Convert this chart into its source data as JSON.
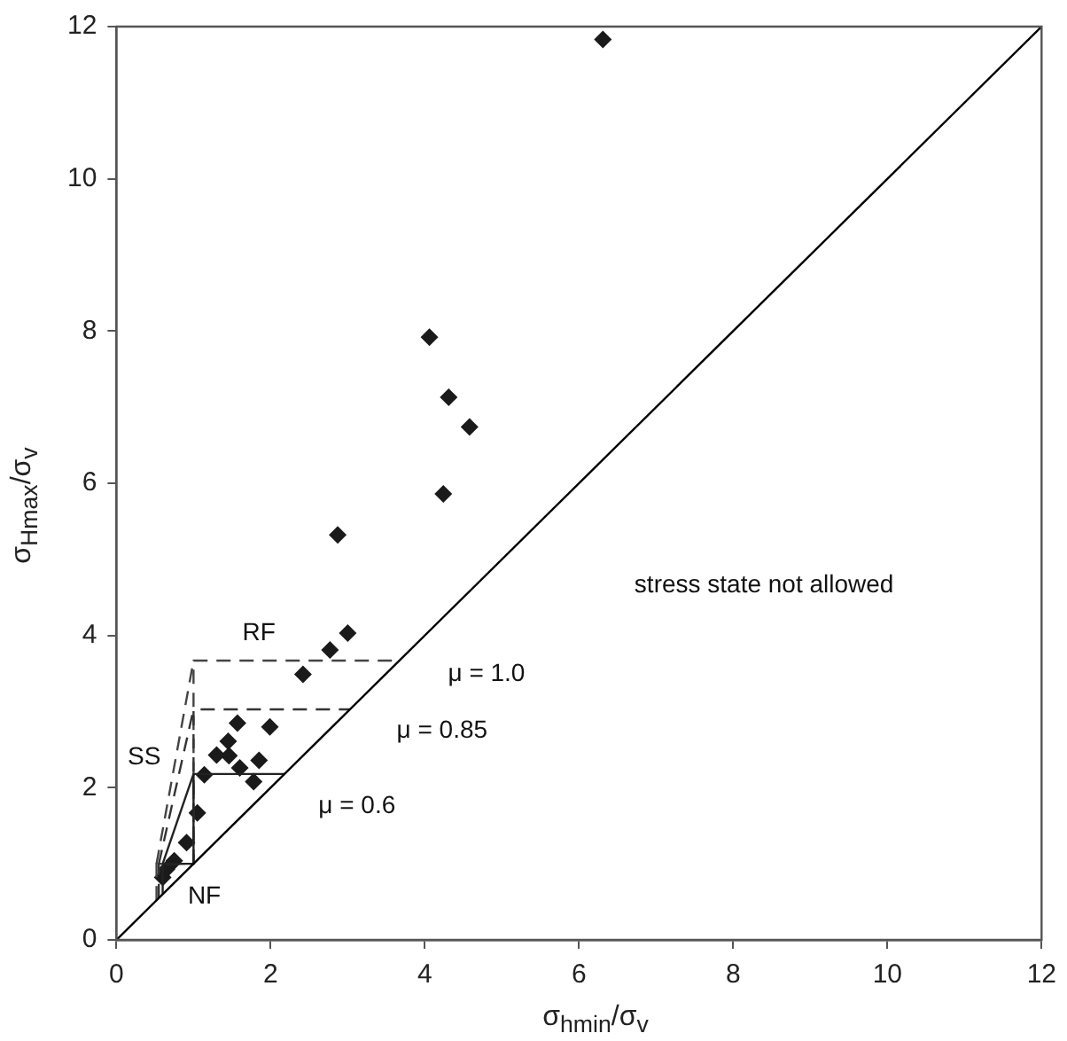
{
  "chart_data": {
    "type": "scatter",
    "xlabel": "σ$_{hmin}$/σ$_{v}$",
    "ylabel": "σ$_{Hmax}$/σ$_{v}$",
    "xlim": [
      0,
      12
    ],
    "ylim": [
      0,
      12
    ],
    "xticks": [
      0,
      2,
      4,
      6,
      8,
      10,
      12
    ],
    "yticks": [
      0,
      2,
      4,
      6,
      8,
      10,
      12
    ],
    "grid": false,
    "legend": false,
    "series": [
      {
        "type": "line",
        "color": "#000000",
        "line_style": "solid",
        "marker": "none",
        "x": [
          0,
          12
        ],
        "values": [
          0,
          12
        ]
      },
      {
        "type": "line",
        "color": "#222222",
        "line_style": "solid",
        "marker": "none",
        "x": [
          0.6,
          0.6,
          1,
          1,
          2.18
        ],
        "values": [
          0.6,
          1,
          1,
          2.18,
          2.18
        ]
      },
      {
        "type": "line",
        "color": "#222222",
        "line_style": "solid",
        "marker": "none",
        "x": [
          0.6,
          1
        ],
        "values": [
          1,
          2.18
        ]
      },
      {
        "type": "line",
        "color": "#333333",
        "line_style": "dashed",
        "marker": "none",
        "x": [
          0.55,
          0.55,
          1,
          1,
          3.03
        ],
        "values": [
          0.55,
          1,
          1,
          3.03,
          3.03
        ]
      },
      {
        "type": "line",
        "color": "#333333",
        "line_style": "dashed",
        "marker": "none",
        "x": [
          0.55,
          1
        ],
        "values": [
          1,
          3.03
        ]
      },
      {
        "type": "line",
        "color": "#444444",
        "line_style": "dashed",
        "marker": "none",
        "x": [
          0.52,
          0.52,
          1,
          1,
          3.67
        ],
        "values": [
          0.52,
          1,
          1,
          3.67,
          3.67
        ]
      },
      {
        "type": "line",
        "color": "#444444",
        "line_style": "dashed",
        "marker": "none",
        "x": [
          0.52,
          1
        ],
        "values": [
          1,
          3.67
        ]
      },
      {
        "color": "#1a1a1a",
        "marker": "diamond",
        "x": [
          6.31,
          4.06,
          4.31,
          4.58,
          4.24,
          2.87,
          3.0,
          2.77,
          2.42,
          1.99,
          1.57,
          1.45,
          1.3,
          1.46,
          1.6,
          1.85,
          1.78,
          1.14,
          1.05,
          0.91,
          0.75,
          0.65,
          0.6
        ],
        "values": [
          11.83,
          7.92,
          7.13,
          6.74,
          5.86,
          5.32,
          4.03,
          3.81,
          3.49,
          2.8,
          2.85,
          2.61,
          2.43,
          2.42,
          2.26,
          2.36,
          2.08,
          2.17,
          1.67,
          1.28,
          1.04,
          0.93,
          0.82
        ]
      }
    ],
    "annotations": [
      "stress state not allowed",
      "RF",
      "SS",
      "NF",
      "μ = 1.0",
      "μ = 0.85",
      "μ = 0.6"
    ]
  }
}
